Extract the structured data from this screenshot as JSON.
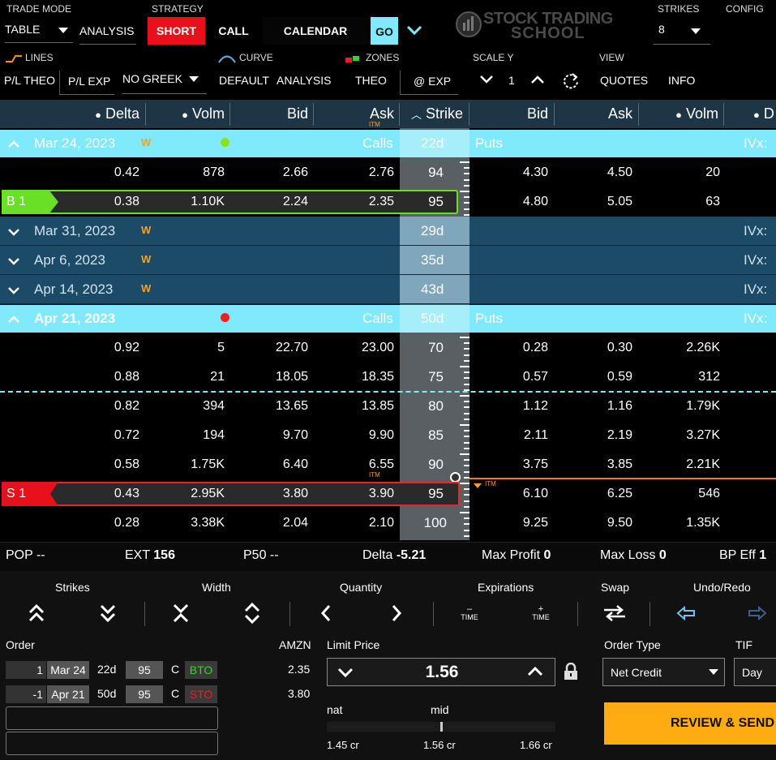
{
  "toolbar": {
    "trade_mode_label": "TRADE MODE",
    "trade_mode_value": "TABLE",
    "analysis": "ANALYSIS",
    "strategy_label": "STRATEGY",
    "short": "SHORT",
    "call": "CALL",
    "calendar": "CALENDAR",
    "go": "GO",
    "logo_line1": "STOCK TRADING",
    "logo_line2": "SCHOOL",
    "strikes_label": "STRIKES",
    "strikes_value": "8",
    "config": "CONFIG",
    "lines": "LINES",
    "curve": "CURVE",
    "zones": "ZONES",
    "scale_y": "SCALE Y",
    "scale_value": "1",
    "view": "VIEW",
    "pl_theo": "P/L THEO",
    "pl_exp": "P/L EXP",
    "no_greek": "NO GREEK",
    "default": "DEFAULT",
    "analysis2": "ANALYSIS",
    "theo": "THEO",
    "at_exp": "@ EXP",
    "quotes": "QUOTES",
    "info": "INFO"
  },
  "table": {
    "headers": {
      "delta": "Delta",
      "volm": "Volm",
      "bid": "Bid",
      "ask": "Ask",
      "strike": "Strike",
      "pbid": "Bid",
      "pask": "Ask",
      "pvolm": "Volm",
      "pd": "D"
    },
    "itm": "ITM",
    "calls": "Calls",
    "puts": "Puts",
    "ivx": "IVx:",
    "w": "W",
    "exp1": {
      "date": "Mar 24, 2023",
      "dte": "22d",
      "dot": "#8be21c"
    },
    "exp1_rows": [
      {
        "delta": "0.42",
        "volm": "878",
        "bid": "2.66",
        "ask": "2.76",
        "strike": "94",
        "pbid": "4.30",
        "pask": "4.50",
        "pvolm": "20"
      },
      {
        "tag": "B 1",
        "delta": "0.38",
        "volm": "1.10K",
        "bid": "2.24",
        "ask": "2.35",
        "strike": "95",
        "pbid": "4.80",
        "pask": "5.05",
        "pvolm": "63"
      }
    ],
    "collapsed": [
      {
        "date": "Mar 31, 2023",
        "dte": "29d"
      },
      {
        "date": "Apr 6, 2023",
        "dte": "35d"
      },
      {
        "date": "Apr 14, 2023",
        "dte": "43d"
      }
    ],
    "exp2": {
      "date": "Apr 21, 2023",
      "dte": "50d",
      "dot": "#f02020"
    },
    "exp2_rows": [
      {
        "delta": "0.92",
        "volm": "5",
        "bid": "22.70",
        "ask": "23.00",
        "strike": "70",
        "pbid": "0.28",
        "pask": "0.30",
        "pvolm": "2.26K"
      },
      {
        "delta": "0.88",
        "volm": "21",
        "bid": "18.05",
        "ask": "18.35",
        "strike": "75",
        "pbid": "0.57",
        "pask": "0.59",
        "pvolm": "312"
      },
      {
        "delta": "0.82",
        "volm": "394",
        "bid": "13.65",
        "ask": "13.85",
        "strike": "80",
        "pbid": "1.12",
        "pask": "1.16",
        "pvolm": "1.79K"
      },
      {
        "delta": "0.72",
        "volm": "194",
        "bid": "9.70",
        "ask": "9.90",
        "strike": "85",
        "pbid": "2.11",
        "pask": "2.19",
        "pvolm": "3.27K"
      },
      {
        "delta": "0.58",
        "volm": "1.75K",
        "bid": "6.40",
        "ask": "6.55",
        "strike": "90",
        "pbid": "3.75",
        "pask": "3.85",
        "pvolm": "2.21K"
      },
      {
        "tag": "S 1",
        "delta": "0.43",
        "volm": "2.95K",
        "bid": "3.80",
        "ask": "3.90",
        "strike": "95",
        "pbid": "6.10",
        "pask": "6.25",
        "pvolm": "546"
      },
      {
        "delta": "0.28",
        "volm": "3.38K",
        "bid": "2.04",
        "ask": "2.10",
        "strike": "100",
        "pbid": "9.25",
        "pask": "9.50",
        "pvolm": "1.35K"
      }
    ]
  },
  "stats": {
    "pop_label": "POP",
    "pop_value": "--",
    "ext_label": "EXT",
    "ext_value": "156",
    "p50_label": "P50",
    "p50_value": "--",
    "delta_label": "Delta",
    "delta_value": "-5.21",
    "maxprofit_label": "Max Profit",
    "maxprofit_value": "0",
    "maxloss_label": "Max Loss",
    "maxloss_value": "0",
    "bpeff_label": "BP Eff",
    "bpeff_value": "1"
  },
  "controls": {
    "strikes": "Strikes",
    "width": "Width",
    "quantity": "Quantity",
    "expirations": "Expirations",
    "swap": "Swap",
    "undo_redo": "Undo/Redo",
    "time": "TIME",
    "minus": "–",
    "plus": "+"
  },
  "order": {
    "label": "Order",
    "symbol": "AMZN",
    "legs": [
      {
        "qty": "1",
        "exp": "Mar 24",
        "dte": "22d",
        "strike": "95",
        "type": "C",
        "action": "BTO",
        "action_color": "#39d12b",
        "price": "2.35"
      },
      {
        "qty": "-1",
        "exp": "Apr 21",
        "dte": "50d",
        "strike": "95",
        "type": "C",
        "action": "STO",
        "action_color": "#e8211f",
        "price": "3.80"
      }
    ],
    "limit_label": "Limit Price",
    "limit_value": "1.56",
    "nat": "nat",
    "mid": "mid",
    "nat_val": "1.45 cr",
    "mid_val": "1.56 cr",
    "far_val": "1.66 cr",
    "order_type_label": "Order Type",
    "order_type": "Net Credit",
    "tif_label": "TIF",
    "tif": "Day",
    "review": "REVIEW & SEND"
  }
}
